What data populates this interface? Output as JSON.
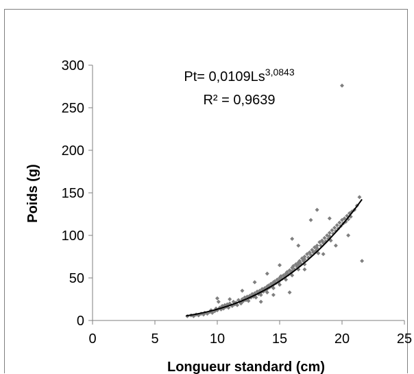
{
  "chart_data": {
    "type": "scatter",
    "xlabel": "Longueur standard (cm)",
    "ylabel": "Poids  (g)",
    "xlim": [
      0,
      25
    ],
    "ylim": [
      0,
      300
    ],
    "xticks": [
      "0",
      "5",
      "10",
      "15",
      "20",
      "25"
    ],
    "yticks": [
      "0",
      "50",
      "100",
      "150",
      "200",
      "250",
      "300"
    ],
    "grid": false,
    "legend": "none",
    "point_color": "#7f7f7f",
    "trend_color": "#000000",
    "annotation": {
      "equation_prefix": "Pt= 0,0109Ls",
      "equation_exponent": "3,0843",
      "r_squared": "R² = 0,9639"
    },
    "trendline": {
      "model": "power",
      "a": 0.0109,
      "b": 3.0843,
      "x_range": [
        7.5,
        21.6
      ]
    },
    "series": [
      {
        "points": [
          [
            7.6,
            5
          ],
          [
            7.9,
            6
          ],
          [
            8.1,
            5
          ],
          [
            8.3,
            7
          ],
          [
            8.5,
            6
          ],
          [
            8.7,
            8
          ],
          [
            8.9,
            7
          ],
          [
            9.0,
            9
          ],
          [
            9.2,
            8
          ],
          [
            9.4,
            10
          ],
          [
            9.5,
            12
          ],
          [
            9.6,
            9
          ],
          [
            9.8,
            11
          ],
          [
            9.9,
            14
          ],
          [
            10.0,
            12
          ],
          [
            10.0,
            26
          ],
          [
            10.1,
            22
          ],
          [
            10.2,
            15
          ],
          [
            10.3,
            13
          ],
          [
            10.4,
            17
          ],
          [
            10.5,
            14
          ],
          [
            10.6,
            18
          ],
          [
            10.7,
            16
          ],
          [
            10.8,
            19
          ],
          [
            10.9,
            15
          ],
          [
            11.0,
            20
          ],
          [
            11.1,
            18
          ],
          [
            11.2,
            17
          ],
          [
            11.3,
            22
          ],
          [
            11.4,
            19
          ],
          [
            11.5,
            21
          ],
          [
            11.6,
            18
          ],
          [
            11.7,
            24
          ],
          [
            11.8,
            22
          ],
          [
            11.9,
            20
          ],
          [
            12.0,
            25
          ],
          [
            12.0,
            22
          ],
          [
            12.1,
            23
          ],
          [
            12.2,
            27
          ],
          [
            12.3,
            24
          ],
          [
            12.4,
            28
          ],
          [
            12.5,
            26
          ],
          [
            12.5,
            23
          ],
          [
            12.6,
            29
          ],
          [
            12.7,
            27
          ],
          [
            12.8,
            31
          ],
          [
            12.9,
            28
          ],
          [
            13.0,
            32
          ],
          [
            13.0,
            29
          ],
          [
            13.1,
            27
          ],
          [
            13.2,
            34
          ],
          [
            13.3,
            31
          ],
          [
            13.4,
            35
          ],
          [
            13.5,
            33
          ],
          [
            13.5,
            30
          ],
          [
            13.6,
            37
          ],
          [
            13.7,
            34
          ],
          [
            13.8,
            38
          ],
          [
            13.9,
            36
          ],
          [
            14.0,
            40
          ],
          [
            14.0,
            37
          ],
          [
            14.0,
            33
          ],
          [
            14.1,
            41
          ],
          [
            14.2,
            39
          ],
          [
            14.3,
            43
          ],
          [
            14.4,
            40
          ],
          [
            14.5,
            45
          ],
          [
            14.5,
            42
          ],
          [
            14.5,
            38
          ],
          [
            14.6,
            46
          ],
          [
            14.7,
            44
          ],
          [
            14.8,
            48
          ],
          [
            14.9,
            45
          ],
          [
            15.0,
            50
          ],
          [
            15.0,
            47
          ],
          [
            15.0,
            42
          ],
          [
            15.1,
            52
          ],
          [
            15.2,
            49
          ],
          [
            15.3,
            53
          ],
          [
            15.4,
            51
          ],
          [
            15.5,
            55
          ],
          [
            15.5,
            52
          ],
          [
            15.5,
            48
          ],
          [
            15.6,
            57
          ],
          [
            15.7,
            54
          ],
          [
            15.8,
            59
          ],
          [
            15.9,
            56
          ],
          [
            16.0,
            62
          ],
          [
            16.0,
            58
          ],
          [
            16.0,
            53
          ],
          [
            16.1,
            64
          ],
          [
            16.2,
            60
          ],
          [
            16.3,
            66
          ],
          [
            16.4,
            63
          ],
          [
            16.5,
            68
          ],
          [
            16.5,
            65
          ],
          [
            16.5,
            60
          ],
          [
            16.6,
            70
          ],
          [
            16.7,
            67
          ],
          [
            16.8,
            73
          ],
          [
            16.9,
            70
          ],
          [
            17.0,
            75
          ],
          [
            17.0,
            72
          ],
          [
            17.0,
            66
          ],
          [
            17.2,
            78
          ],
          [
            17.3,
            74
          ],
          [
            17.4,
            80
          ],
          [
            17.5,
            77
          ],
          [
            17.6,
            83
          ],
          [
            17.7,
            80
          ],
          [
            17.8,
            86
          ],
          [
            17.9,
            82
          ],
          [
            18.0,
            88
          ],
          [
            18.0,
            85
          ],
          [
            18.1,
            79
          ],
          [
            18.2,
            92
          ],
          [
            18.3,
            88
          ],
          [
            18.4,
            94
          ],
          [
            18.5,
            91
          ],
          [
            18.6,
            97
          ],
          [
            18.7,
            93
          ],
          [
            18.8,
            100
          ],
          [
            18.9,
            96
          ],
          [
            19.0,
            103
          ],
          [
            19.0,
            99
          ],
          [
            19.1,
            94
          ],
          [
            19.2,
            106
          ],
          [
            19.3,
            102
          ],
          [
            19.4,
            109
          ],
          [
            19.5,
            105
          ],
          [
            19.6,
            112
          ],
          [
            19.7,
            108
          ],
          [
            19.8,
            115
          ],
          [
            19.9,
            111
          ],
          [
            20.0,
            118
          ],
          [
            20.1,
            114
          ],
          [
            20.2,
            120
          ],
          [
            20.3,
            116
          ],
          [
            20.4,
            123
          ],
          [
            20.5,
            119
          ],
          [
            20.6,
            126
          ],
          [
            20.7,
            122
          ],
          [
            20.8,
            128
          ],
          [
            21.0,
            130
          ],
          [
            21.2,
            135
          ],
          [
            21.4,
            145
          ],
          [
            21.6,
            70
          ],
          [
            20.0,
            276
          ],
          [
            18.0,
            130
          ],
          [
            17.5,
            118
          ],
          [
            16.0,
            96
          ],
          [
            16.5,
            88
          ],
          [
            15.0,
            65
          ],
          [
            14.0,
            55
          ],
          [
            13.0,
            45
          ],
          [
            12.0,
            35
          ],
          [
            15.8,
            33
          ],
          [
            13.5,
            22
          ],
          [
            14.5,
            30
          ],
          [
            11.0,
            25
          ],
          [
            19.5,
            88
          ],
          [
            18.5,
            78
          ],
          [
            17.0,
            60
          ],
          [
            20.5,
            100
          ],
          [
            19.0,
            120
          ]
        ]
      }
    ]
  }
}
